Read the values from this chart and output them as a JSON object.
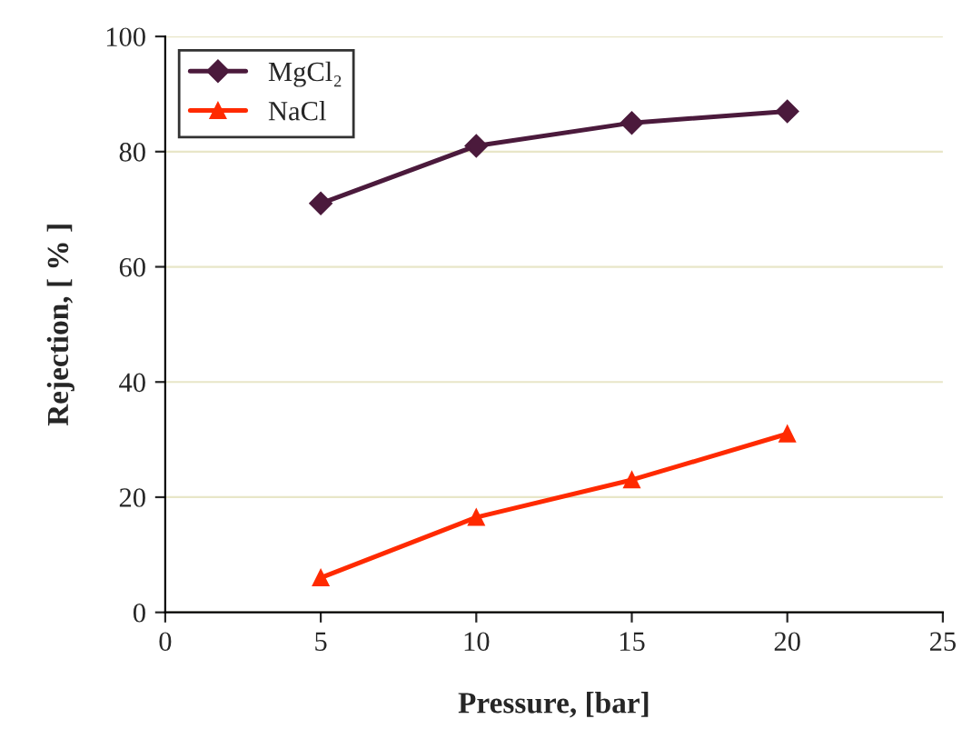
{
  "chart_data": {
    "type": "line",
    "xlabel": "Pressure, [bar]",
    "ylabel": "Rejection, [ % ]",
    "x": [
      5,
      10,
      15,
      20
    ],
    "series": [
      {
        "name": "MgCl₂",
        "color": "#4b1a3c",
        "values": [
          71,
          81,
          85,
          87
        ],
        "marker": "diamond"
      },
      {
        "name": "NaCl",
        "color": "#ff2a00",
        "values": [
          6,
          16.5,
          23,
          31
        ],
        "marker": "triangle"
      }
    ],
    "xlim": [
      0,
      25
    ],
    "xticks": [
      0,
      5,
      10,
      15,
      20,
      25
    ],
    "ylim": [
      0,
      100
    ],
    "yticks": [
      0,
      20,
      40,
      60,
      80,
      100
    ],
    "grid": "y",
    "legend": "top left",
    "line_style": "solid"
  }
}
